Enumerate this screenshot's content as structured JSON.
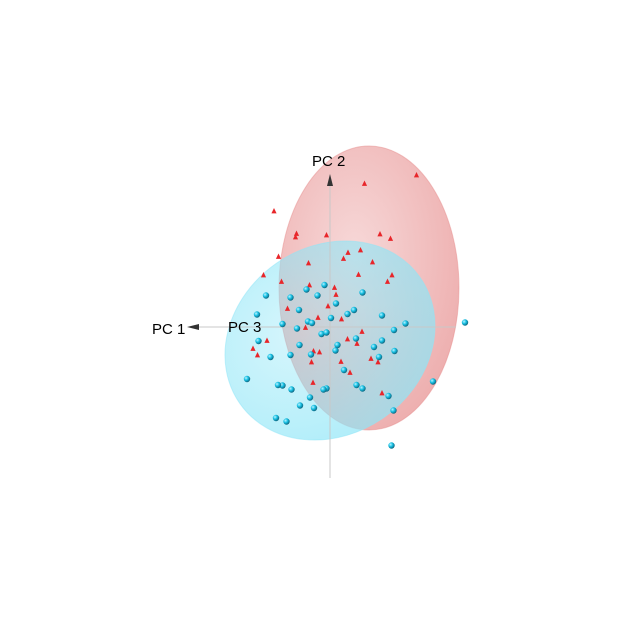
{
  "chart_data": {
    "type": "scatter",
    "title": "",
    "axes": [
      {
        "label": "PC 1"
      },
      {
        "label": "PC 2"
      },
      {
        "label": "PC 3"
      }
    ],
    "xlim": [
      -3.3,
      3.3
    ],
    "ylim": [
      -3.3,
      3.3
    ],
    "grid": false,
    "legend": "none",
    "colors": {
      "red_group": "#e8262a",
      "cyan_group": "#19c3e6",
      "red_ellipse": "#e79090",
      "cyan_ellipse": "#8fe6f7",
      "axis_line": "#c8c8c8"
    },
    "series": [
      {
        "marker": "triangle",
        "color": "#e8262a",
        "points": [
          [
            1.73,
            3.04
          ],
          [
            0.69,
            2.87
          ],
          [
            -1.12,
            2.32
          ],
          [
            -0.69,
            1.8
          ],
          [
            -0.67,
            1.87
          ],
          [
            -0.07,
            1.84
          ],
          [
            0.36,
            1.49
          ],
          [
            0.61,
            1.54
          ],
          [
            1.0,
            1.86
          ],
          [
            1.21,
            1.77
          ],
          [
            0.27,
            1.37
          ],
          [
            -1.03,
            1.41
          ],
          [
            -0.43,
            1.28
          ],
          [
            0.85,
            1.3
          ],
          [
            0.57,
            1.05
          ],
          [
            1.24,
            1.04
          ],
          [
            -1.33,
            1.04
          ],
          [
            -0.97,
            0.91
          ],
          [
            -0.41,
            0.84
          ],
          [
            0.09,
            0.79
          ],
          [
            0.12,
            0.65
          ],
          [
            -0.04,
            0.42
          ],
          [
            -0.24,
            0.19
          ],
          [
            0.23,
            0.16
          ],
          [
            -0.85,
            0.37
          ],
          [
            -0.49,
            -0.01
          ],
          [
            0.64,
            -0.09
          ],
          [
            -0.33,
            -0.48
          ],
          [
            0.54,
            -0.33
          ],
          [
            -1.54,
            -0.43
          ],
          [
            -1.26,
            -0.27
          ],
          [
            -1.45,
            -0.56
          ],
          [
            -0.37,
            -0.7
          ],
          [
            0.22,
            -0.69
          ],
          [
            0.82,
            -0.63
          ],
          [
            -0.34,
            -1.11
          ],
          [
            0.4,
            -0.91
          ],
          [
            1.04,
            -1.32
          ],
          [
            0.96,
            -0.7
          ],
          [
            1.15,
            0.91
          ],
          [
            -0.21,
            -0.5
          ],
          [
            0.35,
            -0.24
          ]
        ]
      },
      {
        "marker": "sphere",
        "color": "#19c3e6",
        "points": [
          [
            -1.28,
            0.63
          ],
          [
            -0.79,
            0.59
          ],
          [
            -0.25,
            0.63
          ],
          [
            0.12,
            0.47
          ],
          [
            -0.11,
            0.84
          ],
          [
            -0.47,
            0.75
          ],
          [
            0.65,
            0.69
          ],
          [
            -0.62,
            0.34
          ],
          [
            0.48,
            0.34
          ],
          [
            1.04,
            0.23
          ],
          [
            -0.95,
            0.06
          ],
          [
            -0.44,
            0.11
          ],
          [
            0.02,
            0.18
          ],
          [
            0.35,
            0.26
          ],
          [
            2.7,
            0.09
          ],
          [
            1.51,
            0.07
          ],
          [
            -1.46,
            0.25
          ],
          [
            -0.66,
            -0.03
          ],
          [
            -0.17,
            -0.14
          ],
          [
            -0.07,
            -0.11
          ],
          [
            0.52,
            -0.23
          ],
          [
            0.88,
            -0.4
          ],
          [
            1.29,
            -0.48
          ],
          [
            1.28,
            -0.06
          ],
          [
            -1.19,
            -0.6
          ],
          [
            -0.61,
            -0.36
          ],
          [
            -0.79,
            -0.56
          ],
          [
            0.11,
            -0.47
          ],
          [
            0.98,
            -0.6
          ],
          [
            1.04,
            -0.27
          ],
          [
            -1.43,
            -0.28
          ],
          [
            -0.38,
            -0.55
          ],
          [
            0.28,
            -0.86
          ],
          [
            0.65,
            -1.23
          ],
          [
            1.17,
            -1.38
          ],
          [
            2.06,
            -1.09
          ],
          [
            -1.66,
            -1.04
          ],
          [
            -0.95,
            -1.17
          ],
          [
            -0.77,
            -1.25
          ],
          [
            -0.07,
            -1.23
          ],
          [
            -0.4,
            -1.41
          ],
          [
            -0.32,
            -1.62
          ],
          [
            -0.6,
            -1.57
          ],
          [
            -1.08,
            -1.82
          ],
          [
            -0.87,
            -1.89
          ],
          [
            -0.13,
            -1.25
          ],
          [
            1.27,
            -1.67
          ],
          [
            1.23,
            -2.37
          ],
          [
            0.53,
            -1.16
          ],
          [
            0.15,
            -0.36
          ],
          [
            -0.36,
            0.08
          ],
          [
            -1.04,
            -1.16
          ]
        ]
      }
    ],
    "ellipses": [
      {
        "color": "#e79090",
        "center": [
          0.78,
          0.78
        ],
        "radii": [
          1.8,
          2.84
        ]
      },
      {
        "color": "#8fe6f7",
        "center": [
          0.0,
          -0.27
        ],
        "radii": [
          2.2,
          1.88
        ],
        "rotation_deg": -35
      }
    ]
  }
}
